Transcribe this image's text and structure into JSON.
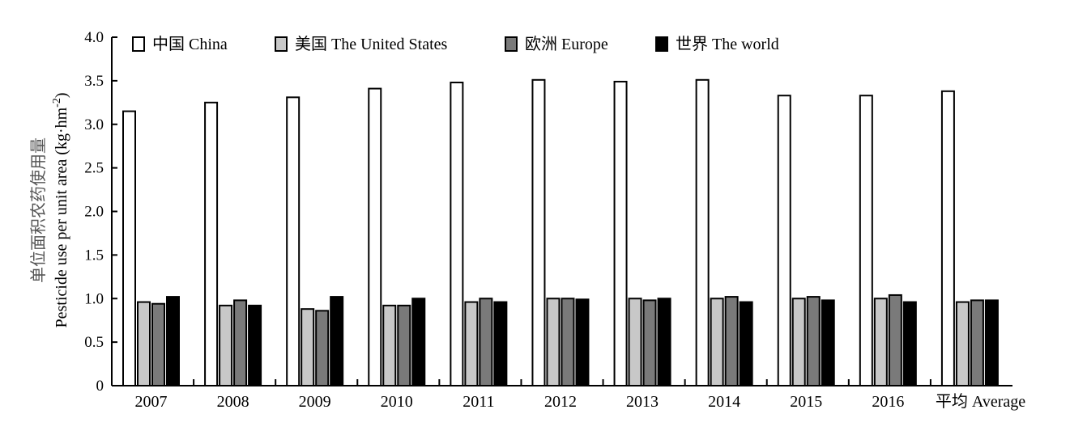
{
  "chart_data": {
    "type": "bar",
    "title": "",
    "xlabel": "",
    "ylabel_cn": "单位面积农药使用量",
    "ylabel_en": "Pesticide use per unit area (kg·hm",
    "ylabel_sup": "-2",
    "ylabel_close": ")",
    "ylim": [
      0,
      4.0
    ],
    "yticks": [
      "0",
      "0.5",
      "1.0",
      "1.5",
      "2.0",
      "2.5",
      "3.0",
      "3.5",
      "4.0"
    ],
    "ytick_values": [
      0,
      0.5,
      1.0,
      1.5,
      2.0,
      2.5,
      3.0,
      3.5,
      4.0
    ],
    "categories": [
      "2007",
      "2008",
      "2009",
      "2010",
      "2011",
      "2012",
      "2013",
      "2014",
      "2015",
      "2016",
      "平均 Average"
    ],
    "legend_position": "top",
    "grid": false,
    "series": [
      {
        "name": "中国 China",
        "color": "#ffffff",
        "values": [
          3.15,
          3.25,
          3.31,
          3.41,
          3.48,
          3.51,
          3.49,
          3.51,
          3.33,
          3.33,
          3.38
        ]
      },
      {
        "name": "美国 The United States",
        "color": "#c8c8c8",
        "values": [
          0.96,
          0.92,
          0.88,
          0.92,
          0.96,
          1.0,
          1.0,
          1.0,
          1.0,
          1.0,
          0.96
        ]
      },
      {
        "name": "欧洲 Europe",
        "color": "#7a7a7a",
        "values": [
          0.94,
          0.98,
          0.86,
          0.92,
          1.0,
          1.0,
          0.98,
          1.02,
          1.02,
          1.04,
          0.98
        ]
      },
      {
        "name": "世界 The world",
        "color": "#000000",
        "values": [
          1.02,
          0.92,
          1.02,
          1.0,
          0.96,
          0.99,
          1.0,
          0.96,
          0.98,
          0.96,
          0.98
        ]
      }
    ]
  }
}
